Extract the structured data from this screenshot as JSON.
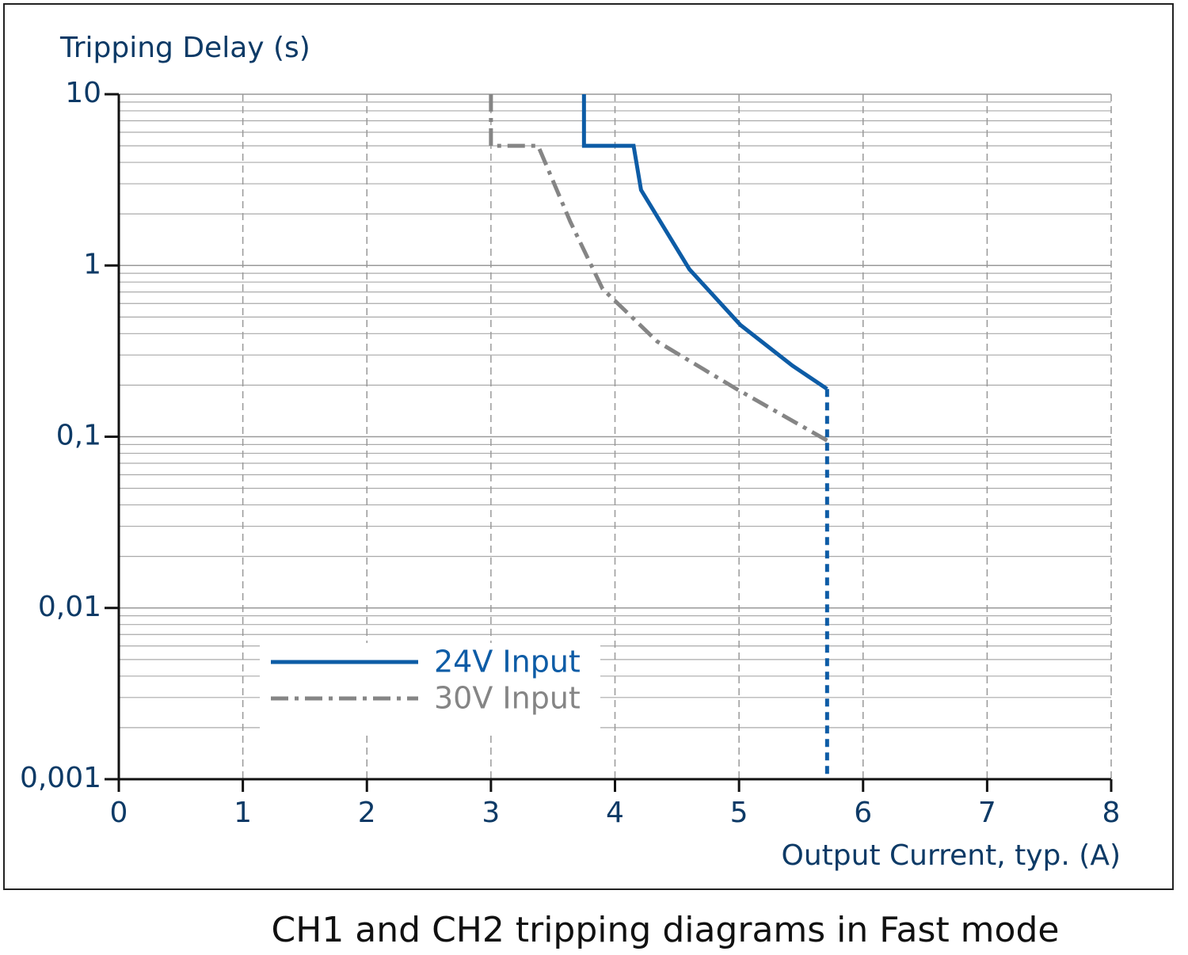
{
  "chart_data": {
    "type": "line",
    "title": "CH1 and CH2 tripping diagrams in Fast mode",
    "x_label": "Output Current, typ. (A)",
    "y_label": "Tripping Delay (s)",
    "xlim": [
      0,
      8
    ],
    "xticks": [
      0,
      1,
      2,
      3,
      4,
      5,
      6,
      7,
      8
    ],
    "ylim": [
      0.001,
      10
    ],
    "yticks": [
      {
        "value": 0.001,
        "label": "0,001"
      },
      {
        "value": 0.01,
        "label": "0,01"
      },
      {
        "value": 0.1,
        "label": "0,1"
      },
      1,
      10
    ],
    "y_scale": "log",
    "grid": true,
    "legend": "lower left",
    "series": [
      {
        "name": "24V Input",
        "color": "#0d5ca6",
        "dash": "solid",
        "x": [
          3.75,
          3.75,
          4.15,
          4.21,
          4.6,
          5.01,
          5.43,
          5.71
        ],
        "values": [
          10,
          5,
          5,
          2.76,
          0.95,
          0.45,
          0.26,
          0.19
        ]
      },
      {
        "name": "30V Input",
        "color": "#858585",
        "dash": "dashdot",
        "x": [
          3,
          3,
          3.38,
          3.64,
          3.9,
          4.34,
          4.98,
          5.71
        ],
        "values": [
          10,
          5,
          5,
          1.8,
          0.73,
          0.36,
          0.19,
          0.095
        ]
      },
      {
        "color": "#0d5ca6",
        "dash": "dotted",
        "x": [
          5.71,
          5.71
        ],
        "values": [
          0.19,
          0.001
        ]
      }
    ]
  }
}
